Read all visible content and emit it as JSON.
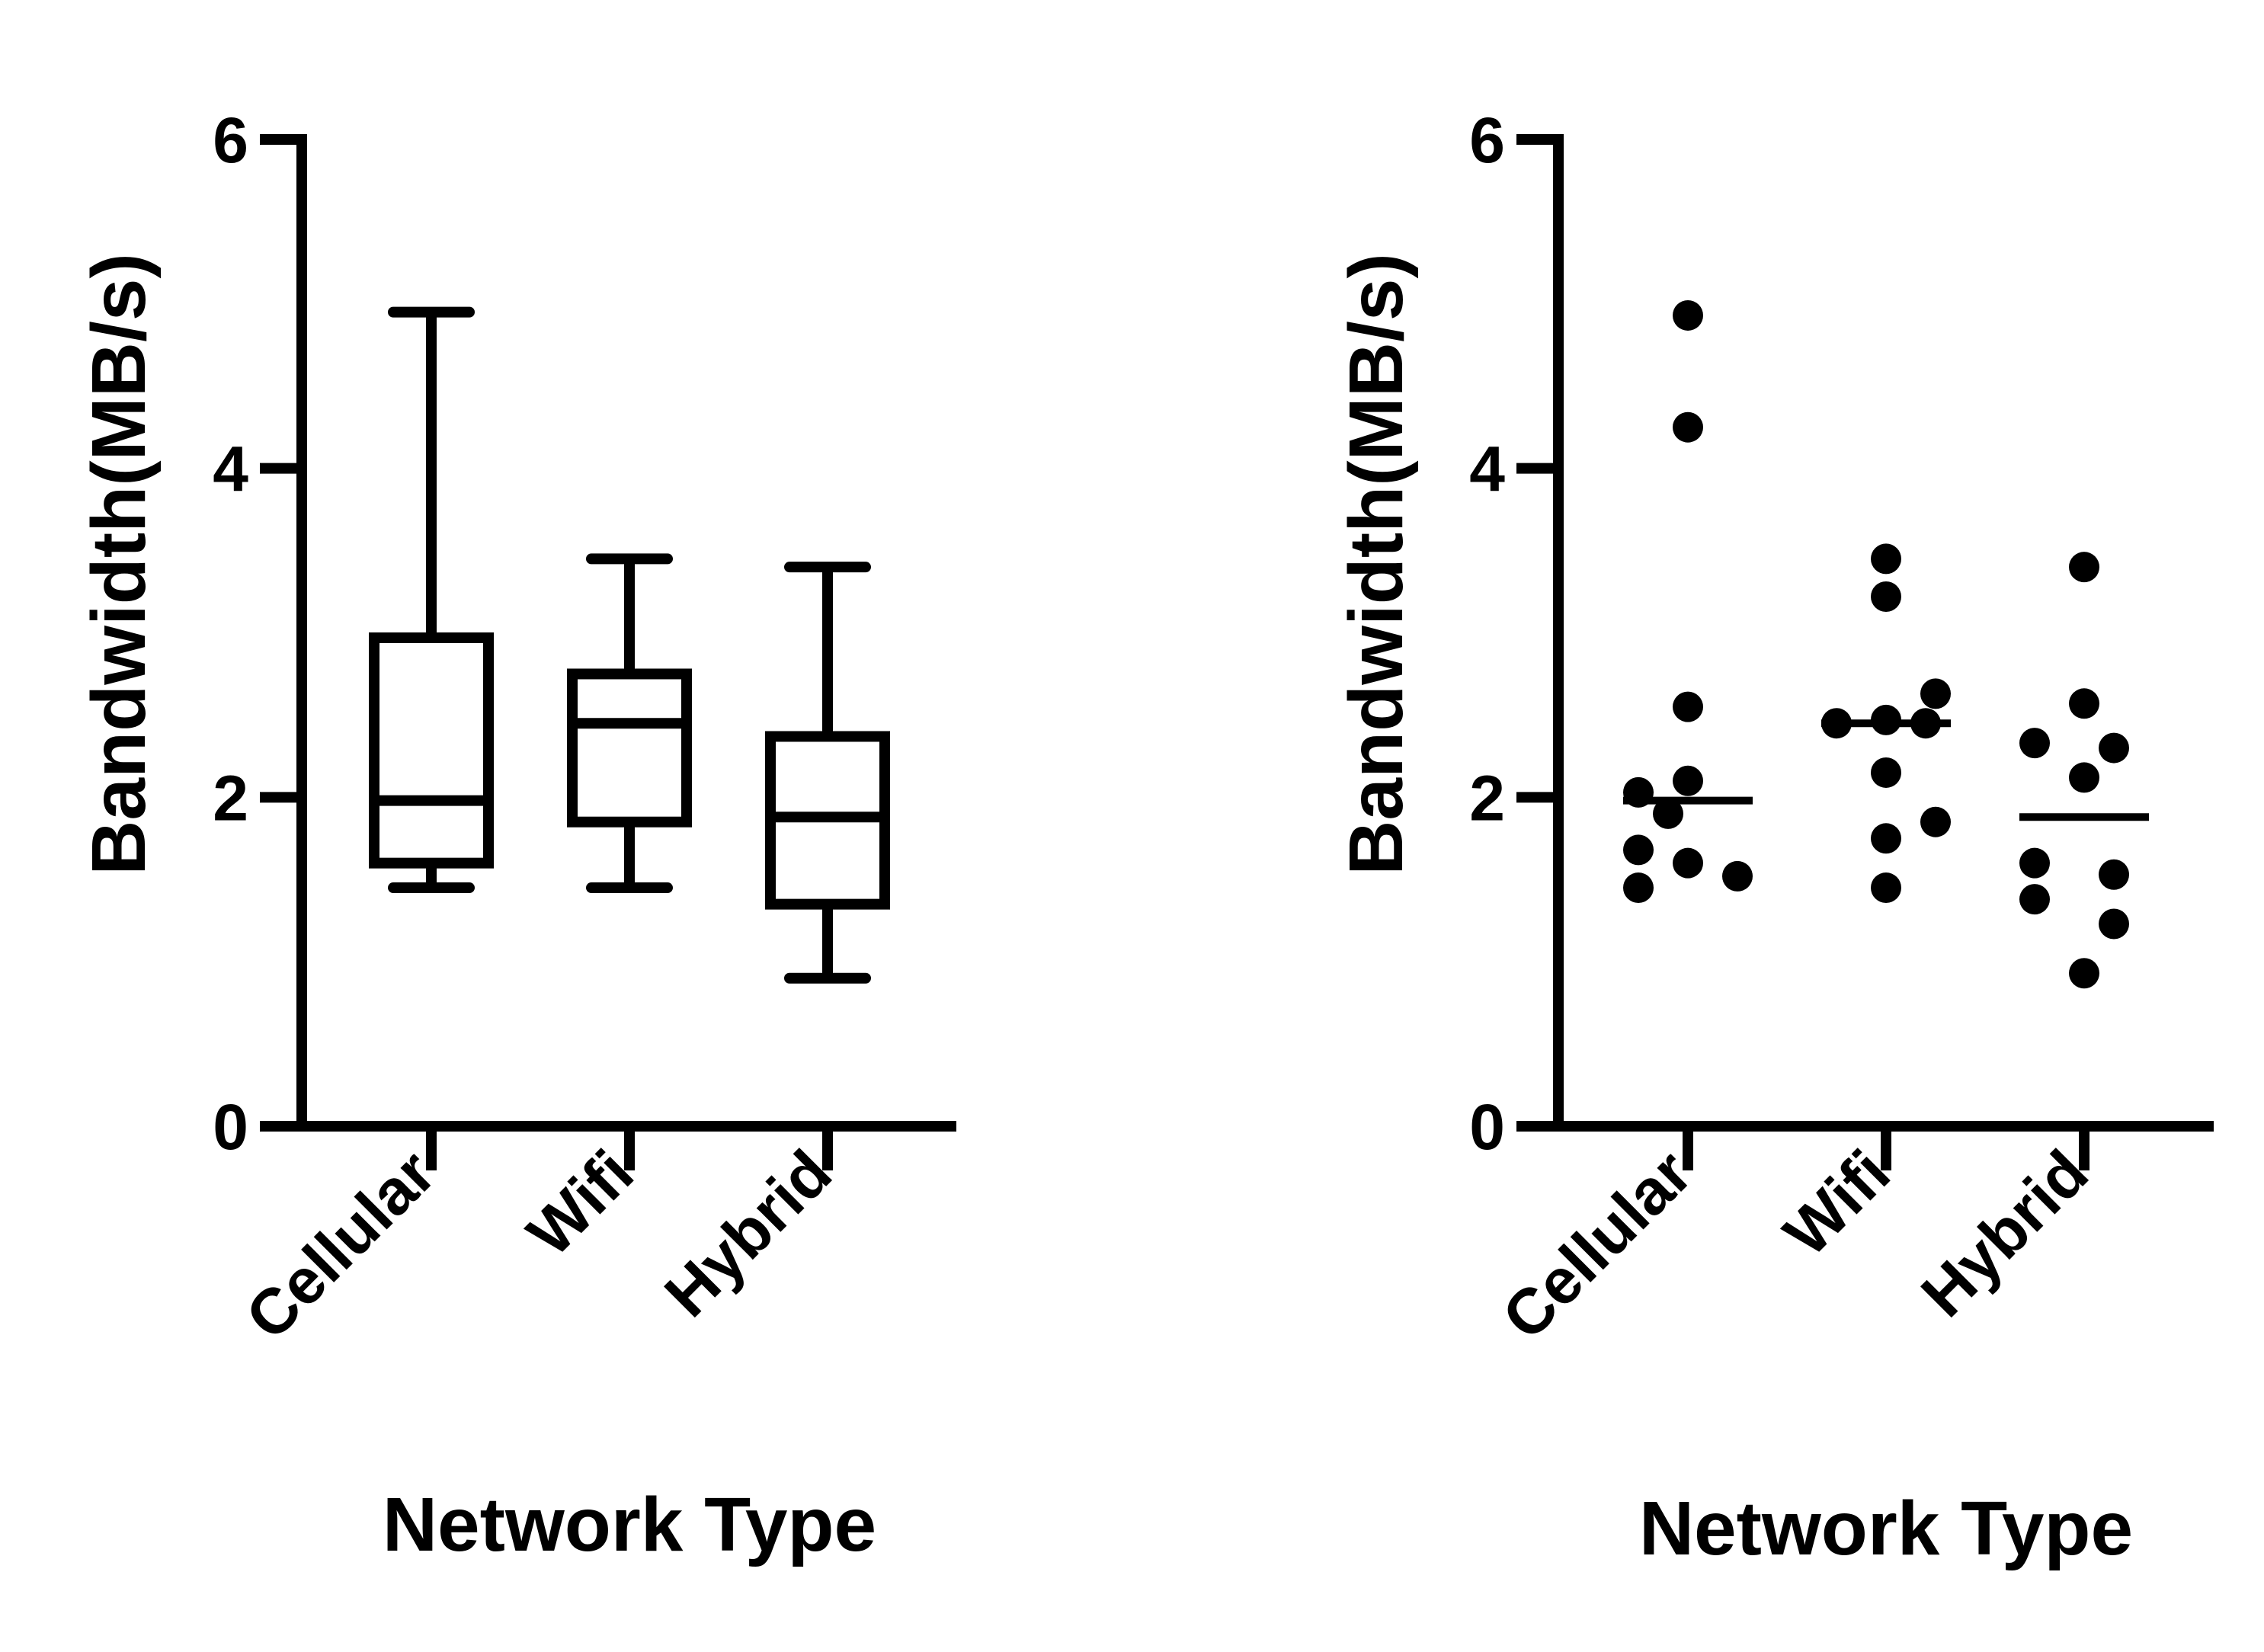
{
  "chart_data": [
    {
      "type": "box",
      "xlabel": "Network Type",
      "ylabel": "Bandwidth(MB/s)",
      "ylim": [
        0,
        6
      ],
      "yticks": [
        0,
        2,
        4,
        6
      ],
      "yticks_labels": [
        "0",
        "2",
        "4",
        "6"
      ],
      "categories": [
        "Cellular",
        "Wifi",
        "Hybrid"
      ],
      "boxes": [
        {
          "category": "Cellular",
          "min": 1.45,
          "q1": 1.6,
          "median": 1.98,
          "q3": 2.97,
          "max": 4.95
        },
        {
          "category": "Wifi",
          "min": 1.45,
          "q1": 1.85,
          "median": 2.45,
          "q3": 2.75,
          "max": 3.45
        },
        {
          "category": "Hybrid",
          "min": 0.9,
          "q1": 1.35,
          "median": 1.88,
          "q3": 2.37,
          "max": 3.4
        }
      ],
      "grid": false,
      "color": "#000000"
    },
    {
      "type": "scatter",
      "xlabel": "Network Type",
      "ylabel": "Bandwidth(MB/s)",
      "ylim": [
        0,
        6
      ],
      "yticks": [
        0,
        2,
        4,
        6
      ],
      "yticks_labels": [
        "0",
        "2",
        "4",
        "6"
      ],
      "categories": [
        "Cellular",
        "Wifi",
        "Hybrid"
      ],
      "groups": [
        {
          "category": "Cellular",
          "median": 1.98,
          "points": [
            {
              "offset": -0.25,
              "y": 2.03
            },
            {
              "offset": -0.25,
              "y": 1.68
            },
            {
              "offset": -0.25,
              "y": 1.45
            },
            {
              "offset": 0.0,
              "y": 4.93
            },
            {
              "offset": 0.0,
              "y": 4.25
            },
            {
              "offset": 0.0,
              "y": 2.55
            },
            {
              "offset": 0.0,
              "y": 2.1
            },
            {
              "offset": -0.1,
              "y": 1.9
            },
            {
              "offset": 0.0,
              "y": 1.6
            },
            {
              "offset": 0.25,
              "y": 1.52
            }
          ]
        },
        {
          "category": "Wifi",
          "median": 2.45,
          "points": [
            {
              "offset": 0.0,
              "y": 3.45
            },
            {
              "offset": 0.0,
              "y": 3.22
            },
            {
              "offset": -0.25,
              "y": 2.45
            },
            {
              "offset": 0.0,
              "y": 2.47
            },
            {
              "offset": 0.25,
              "y": 2.63
            },
            {
              "offset": 0.2,
              "y": 2.45
            },
            {
              "offset": 0.0,
              "y": 2.15
            },
            {
              "offset": 0.0,
              "y": 1.75
            },
            {
              "offset": 0.25,
              "y": 1.85
            },
            {
              "offset": 0.0,
              "y": 1.45
            }
          ]
        },
        {
          "category": "Hybrid",
          "median": 1.88,
          "points": [
            {
              "offset": 0.0,
              "y": 3.4
            },
            {
              "offset": 0.0,
              "y": 2.57
            },
            {
              "offset": -0.25,
              "y": 2.33
            },
            {
              "offset": 0.15,
              "y": 2.3
            },
            {
              "offset": 0.0,
              "y": 2.12
            },
            {
              "offset": -0.25,
              "y": 1.6
            },
            {
              "offset": 0.15,
              "y": 1.53
            },
            {
              "offset": -0.25,
              "y": 1.38
            },
            {
              "offset": 0.15,
              "y": 1.23
            },
            {
              "offset": 0.0,
              "y": 0.93
            }
          ]
        }
      ],
      "grid": false,
      "color": "#000000"
    }
  ]
}
